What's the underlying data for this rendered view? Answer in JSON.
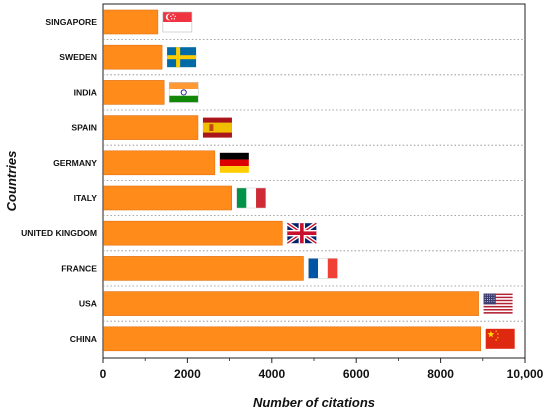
{
  "chart_data": {
    "type": "bar",
    "orientation": "horizontal",
    "categories": [
      "SINGAPORE",
      "SWEDEN",
      "INDIA",
      "SPAIN",
      "GERMANY",
      "ITALY",
      "UNITED KINGDOM",
      "FRANCE",
      "USA",
      "CHINA"
    ],
    "values": [
      1300,
      1400,
      1450,
      2250,
      2650,
      3050,
      4250,
      4750,
      8900,
      8950
    ],
    "flags": [
      "singapore-flag-icon",
      "sweden-flag-icon",
      "india-flag-icon",
      "spain-flag-icon",
      "germany-flag-icon",
      "italy-flag-icon",
      "uk-flag-icon",
      "france-flag-icon",
      "usa-flag-icon",
      "china-flag-icon"
    ],
    "xlabel": "Number of citations",
    "ylabel": "Countries",
    "xlim": [
      0,
      10000
    ],
    "xticks": [
      0,
      2000,
      4000,
      6000,
      8000,
      10000
    ],
    "xtick_labels": [
      "0",
      "2000",
      "4000",
      "6000",
      "8000",
      "10,000"
    ],
    "grid": "horizontal dotted separators between bars",
    "legend": "none",
    "bar_color": "#FF8C1A",
    "bar_edge_color": "#E07010"
  }
}
